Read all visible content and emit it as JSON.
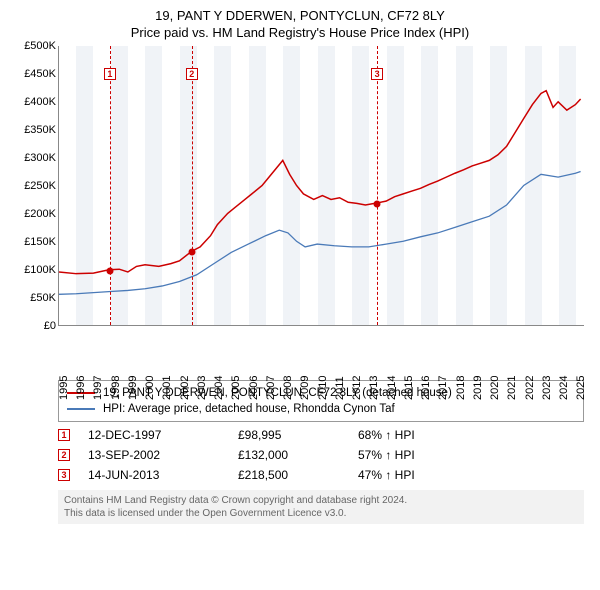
{
  "title": "19, PANT Y DDERWEN, PONTYCLUN, CF72 8LY",
  "subtitle": "Price paid vs. HM Land Registry's House Price Index (HPI)",
  "chart": {
    "type": "line",
    "background_color": "#ffffff",
    "band_color": "#f0f3f7",
    "x_start": 1995,
    "x_end": 2025.5,
    "x_ticks": [
      1995,
      1996,
      1997,
      1998,
      1999,
      2000,
      2001,
      2002,
      2003,
      2004,
      2005,
      2006,
      2007,
      2008,
      2009,
      2010,
      2011,
      2012,
      2013,
      2014,
      2015,
      2016,
      2017,
      2018,
      2019,
      2020,
      2021,
      2022,
      2023,
      2024,
      2025
    ],
    "ylim": [
      0,
      500000
    ],
    "y_ticks": [
      0,
      50000,
      100000,
      150000,
      200000,
      250000,
      300000,
      350000,
      400000,
      450000,
      500000
    ],
    "y_tick_labels": [
      "£0",
      "£50K",
      "£100K",
      "£150K",
      "£200K",
      "£250K",
      "£300K",
      "£350K",
      "£400K",
      "£450K",
      "£500K"
    ],
    "grid_color": "#888888",
    "series": [
      {
        "name": "property",
        "label": "19, PANT Y DDERWEN, PONTYCLUN, CF72 8LY (detached house)",
        "color": "#cc0000",
        "line_width": 1.5,
        "points": [
          [
            1995.0,
            95000
          ],
          [
            1996.0,
            92000
          ],
          [
            1997.0,
            93000
          ],
          [
            1997.9,
            98995
          ],
          [
            1998.5,
            100000
          ],
          [
            1999.0,
            95000
          ],
          [
            1999.5,
            105000
          ],
          [
            2000.0,
            108000
          ],
          [
            2000.8,
            105000
          ],
          [
            2001.5,
            110000
          ],
          [
            2002.0,
            115000
          ],
          [
            2002.7,
            132000
          ],
          [
            2003.2,
            140000
          ],
          [
            2003.8,
            160000
          ],
          [
            2004.2,
            180000
          ],
          [
            2004.8,
            200000
          ],
          [
            2005.2,
            210000
          ],
          [
            2005.8,
            225000
          ],
          [
            2006.2,
            235000
          ],
          [
            2006.8,
            250000
          ],
          [
            2007.2,
            265000
          ],
          [
            2007.6,
            280000
          ],
          [
            2008.0,
            295000
          ],
          [
            2008.4,
            270000
          ],
          [
            2008.8,
            250000
          ],
          [
            2009.2,
            235000
          ],
          [
            2009.8,
            225000
          ],
          [
            2010.3,
            232000
          ],
          [
            2010.8,
            225000
          ],
          [
            2011.3,
            228000
          ],
          [
            2011.8,
            220000
          ],
          [
            2012.3,
            218000
          ],
          [
            2012.8,
            215000
          ],
          [
            2013.45,
            218500
          ],
          [
            2014.0,
            222000
          ],
          [
            2014.5,
            230000
          ],
          [
            2015.0,
            235000
          ],
          [
            2015.5,
            240000
          ],
          [
            2016.0,
            245000
          ],
          [
            2016.5,
            252000
          ],
          [
            2017.0,
            258000
          ],
          [
            2017.5,
            265000
          ],
          [
            2018.0,
            272000
          ],
          [
            2018.5,
            278000
          ],
          [
            2019.0,
            285000
          ],
          [
            2019.5,
            290000
          ],
          [
            2020.0,
            295000
          ],
          [
            2020.5,
            305000
          ],
          [
            2021.0,
            320000
          ],
          [
            2021.5,
            345000
          ],
          [
            2022.0,
            370000
          ],
          [
            2022.5,
            395000
          ],
          [
            2023.0,
            415000
          ],
          [
            2023.3,
            420000
          ],
          [
            2023.7,
            390000
          ],
          [
            2024.0,
            400000
          ],
          [
            2024.5,
            385000
          ],
          [
            2025.0,
            395000
          ],
          [
            2025.3,
            405000
          ]
        ]
      },
      {
        "name": "hpi",
        "label": "HPI: Average price, detached house, Rhondda Cynon Taf",
        "color": "#4a7ab8",
        "line_width": 1.3,
        "points": [
          [
            1995.0,
            55000
          ],
          [
            1996.0,
            56000
          ],
          [
            1997.0,
            58000
          ],
          [
            1998.0,
            60000
          ],
          [
            1999.0,
            62000
          ],
          [
            2000.0,
            65000
          ],
          [
            2001.0,
            70000
          ],
          [
            2002.0,
            78000
          ],
          [
            2003.0,
            90000
          ],
          [
            2004.0,
            110000
          ],
          [
            2005.0,
            130000
          ],
          [
            2006.0,
            145000
          ],
          [
            2007.0,
            160000
          ],
          [
            2007.8,
            170000
          ],
          [
            2008.3,
            165000
          ],
          [
            2008.8,
            150000
          ],
          [
            2009.3,
            140000
          ],
          [
            2010.0,
            145000
          ],
          [
            2011.0,
            142000
          ],
          [
            2012.0,
            140000
          ],
          [
            2013.0,
            140000
          ],
          [
            2014.0,
            145000
          ],
          [
            2015.0,
            150000
          ],
          [
            2016.0,
            158000
          ],
          [
            2017.0,
            165000
          ],
          [
            2018.0,
            175000
          ],
          [
            2019.0,
            185000
          ],
          [
            2020.0,
            195000
          ],
          [
            2021.0,
            215000
          ],
          [
            2022.0,
            250000
          ],
          [
            2023.0,
            270000
          ],
          [
            2024.0,
            265000
          ],
          [
            2025.0,
            272000
          ],
          [
            2025.3,
            275000
          ]
        ]
      }
    ],
    "sale_markers": [
      {
        "num": "1",
        "x": 1997.95,
        "y": 98995
      },
      {
        "num": "2",
        "x": 2002.7,
        "y": 132000
      },
      {
        "num": "3",
        "x": 2013.45,
        "y": 218500
      }
    ]
  },
  "legend": {
    "items": [
      {
        "color": "#cc0000",
        "label": "19, PANT Y DDERWEN, PONTYCLUN, CF72 8LY (detached house)"
      },
      {
        "color": "#4a7ab8",
        "label": "HPI: Average price, detached house, Rhondda Cynon Taf"
      }
    ]
  },
  "sales": [
    {
      "num": "1",
      "date": "12-DEC-1997",
      "price": "£98,995",
      "delta": "68% ↑ HPI"
    },
    {
      "num": "2",
      "date": "13-SEP-2002",
      "price": "£132,000",
      "delta": "57% ↑ HPI"
    },
    {
      "num": "3",
      "date": "14-JUN-2013",
      "price": "£218,500",
      "delta": "47% ↑ HPI"
    }
  ],
  "footer": {
    "line1": "Contains HM Land Registry data © Crown copyright and database right 2024.",
    "line2": "This data is licensed under the Open Government Licence v3.0."
  }
}
